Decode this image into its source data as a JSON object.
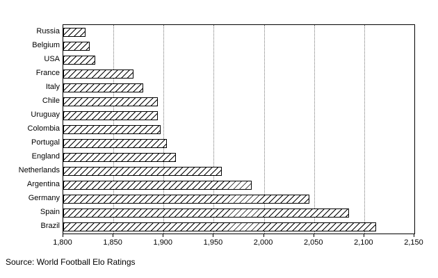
{
  "chart_data": {
    "type": "bar",
    "orientation": "horizontal",
    "title": "",
    "xlabel": "",
    "ylabel": "",
    "xlim": [
      1800,
      2150
    ],
    "ticks": [
      1800,
      1850,
      1900,
      1950,
      2000,
      2050,
      2100,
      2150
    ],
    "grid": "vertical-dotted",
    "categories": [
      "Russia",
      "Belgium",
      "USA",
      "France",
      "Italy",
      "Chile",
      "Uruguay",
      "Colombia",
      "Portugal",
      "England",
      "Netherlands",
      "Argentina",
      "Germany",
      "Spain",
      "Brazil"
    ],
    "values": [
      1822,
      1826,
      1832,
      1870,
      1880,
      1894,
      1894,
      1897,
      1903,
      1912,
      1958,
      1988,
      2045,
      2085,
      2112
    ],
    "bar_fill": "diagonal-hatch",
    "bar_color": "#000000",
    "source": "Source: World Football Elo Ratings"
  }
}
